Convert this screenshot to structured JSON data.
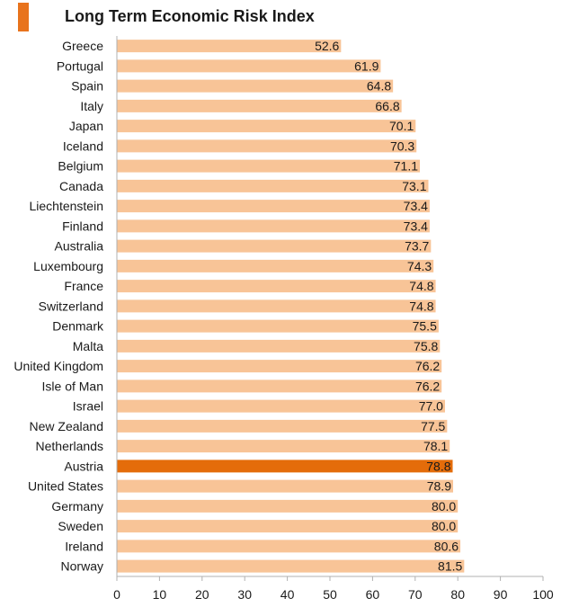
{
  "header": {
    "title": "Long Term Economic Risk Index"
  },
  "colors": {
    "title_mark": "#e8731c",
    "bar": "#f8c497",
    "highlight_bar": "#e46c0a",
    "axis": "#b0b0b0",
    "text": "#1a1a1a"
  },
  "chart_data": {
    "type": "bar",
    "orientation": "horizontal",
    "title": "Long Term Economic Risk Index",
    "categories": [
      "Greece",
      "Portugal",
      "Spain",
      "Italy",
      "Japan",
      "Iceland",
      "Belgium",
      "Canada",
      "Liechtenstein",
      "Finland",
      "Australia",
      "Luxembourg",
      "France",
      "Switzerland",
      "Denmark",
      "Malta",
      "United Kingdom",
      "Isle of Man",
      "Israel",
      "New Zealand",
      "Netherlands",
      "Austria",
      "United States",
      "Germany",
      "Sweden",
      "Ireland",
      "Norway"
    ],
    "values": [
      52.6,
      61.9,
      64.8,
      66.8,
      70.1,
      70.3,
      71.1,
      73.1,
      73.4,
      73.4,
      73.7,
      74.3,
      74.8,
      74.8,
      75.5,
      75.8,
      76.2,
      76.2,
      77.0,
      77.5,
      78.1,
      78.8,
      78.9,
      80.0,
      80.0,
      80.6,
      81.5
    ],
    "value_labels": [
      "52.6",
      "61.9",
      "64.8",
      "66.8",
      "70.1",
      "70.3",
      "71.1",
      "73.1",
      "73.4",
      "73.4",
      "73.7",
      "74.3",
      "74.8",
      "74.8",
      "75.5",
      "75.8",
      "76.2",
      "76.2",
      "77.0",
      "77.5",
      "78.1",
      "78.8",
      "78.9",
      "80.0",
      "80.0",
      "80.6",
      "81.5"
    ],
    "highlight": "Austria",
    "xlim": [
      0,
      100
    ],
    "xticks": [
      0,
      10,
      20,
      30,
      40,
      50,
      60,
      70,
      80,
      90,
      100
    ],
    "xtick_labels": [
      "0",
      "10",
      "20",
      "30",
      "40",
      "50",
      "60",
      "70",
      "80",
      "90",
      "100"
    ],
    "grid": false,
    "legend": "none"
  }
}
